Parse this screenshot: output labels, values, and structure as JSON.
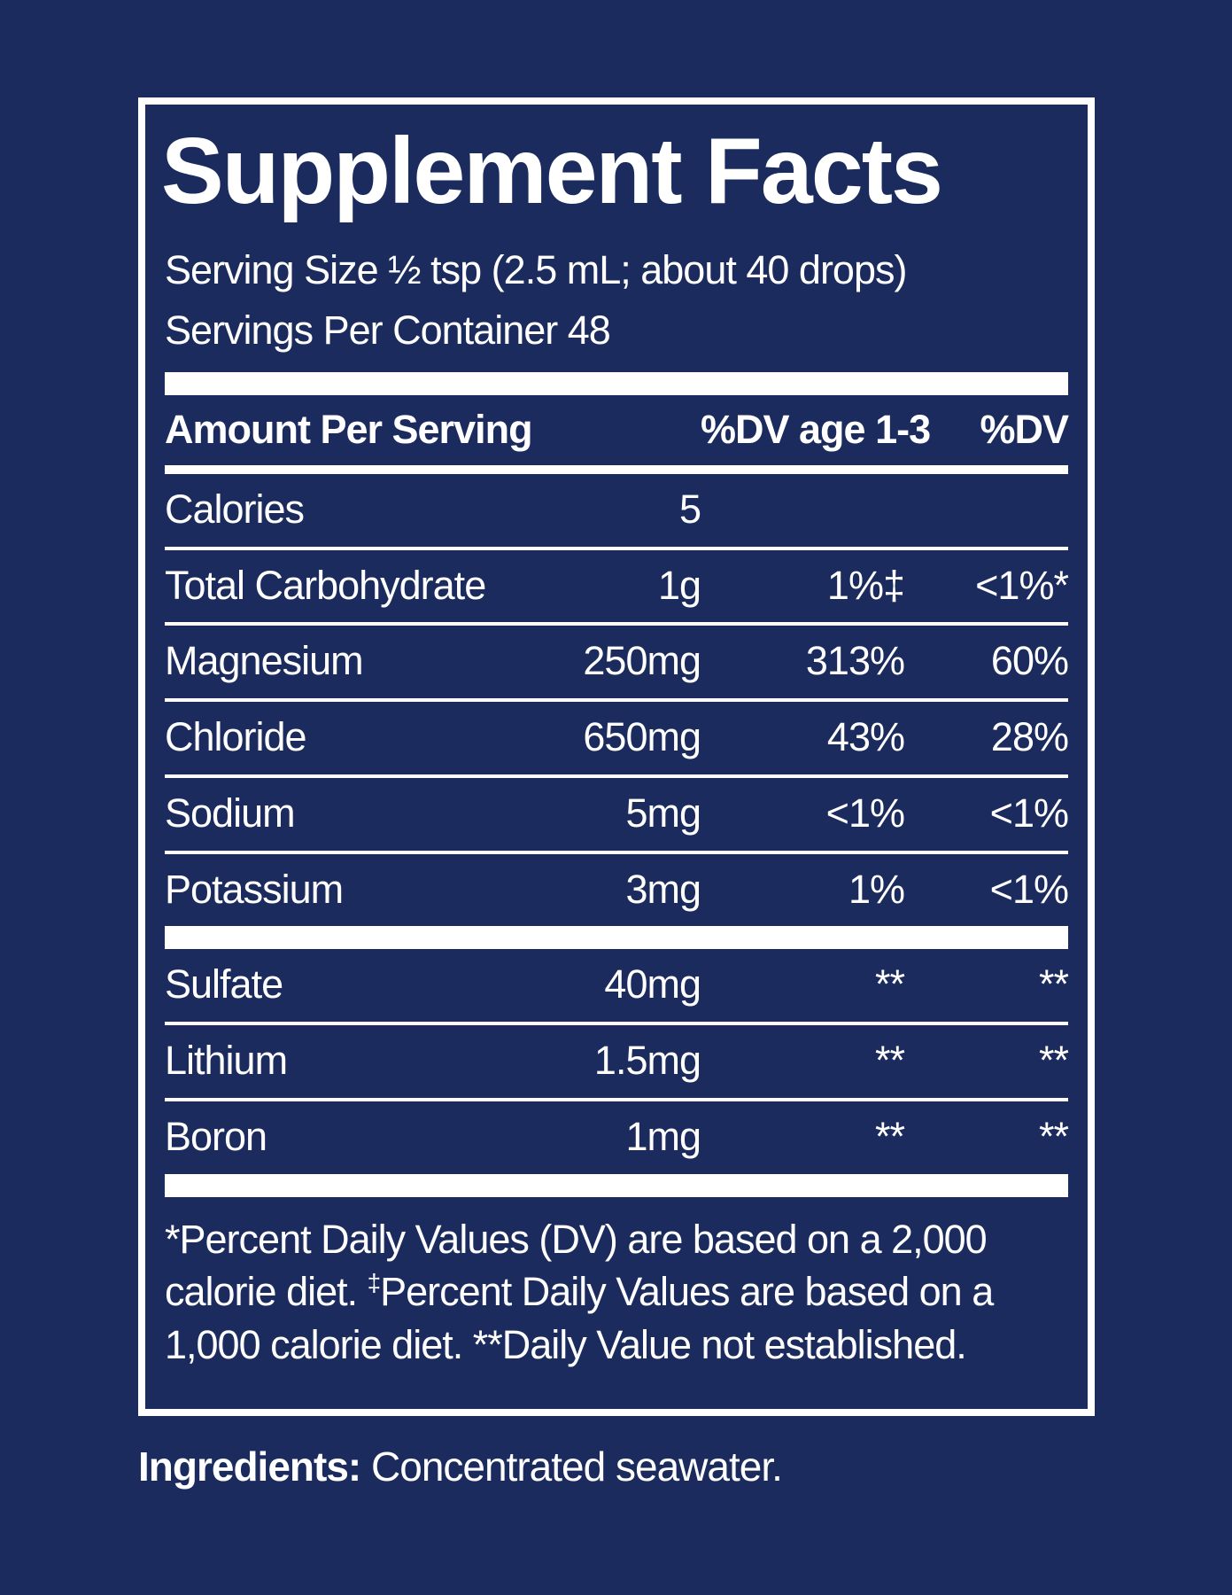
{
  "colors": {
    "background": "#1b2b5e",
    "foreground": "#ffffff"
  },
  "panel": {
    "title": "Supplement Facts",
    "serving_size": "Serving Size ½ tsp (2.5 mL; about 40 drops)",
    "servings_per_container": "Servings Per Container 48",
    "table": {
      "header": {
        "amount_per_serving": "Amount Per Serving",
        "dv_age_1_3": "%DV age 1-3",
        "dv": "%DV"
      },
      "rows": [
        {
          "name": "Calories",
          "amount": "5",
          "dv_age_1_3": "",
          "dv": ""
        },
        {
          "name": "Total Carbohydrate",
          "amount": "1g",
          "dv_age_1_3": "1%‡",
          "dv": "<1%*"
        },
        {
          "name": "Magnesium",
          "amount": "250mg",
          "dv_age_1_3": "313%",
          "dv": "60%"
        },
        {
          "name": "Chloride",
          "amount": "650mg",
          "dv_age_1_3": "43%",
          "dv": "28%"
        },
        {
          "name": "Sodium",
          "amount": "5mg",
          "dv_age_1_3": "<1%",
          "dv": "<1%"
        },
        {
          "name": "Potassium",
          "amount": "3mg",
          "dv_age_1_3": "1%",
          "dv": "<1%"
        }
      ],
      "trace_rows": [
        {
          "name": "Sulfate",
          "amount": "40mg",
          "dv_age_1_3": "**",
          "dv": "**"
        },
        {
          "name": "Lithium",
          "amount": "1.5mg",
          "dv_age_1_3": "**",
          "dv": "**"
        },
        {
          "name": "Boron",
          "amount": "1mg",
          "dv_age_1_3": "**",
          "dv": "**"
        }
      ]
    },
    "footnote": {
      "part1": "*Percent Daily Values (DV) are based on a 2,000 calorie diet. ",
      "dagger": "‡",
      "part2": "Percent Daily Values are based on a 1,000 calorie diet. **Daily Value not established."
    }
  },
  "ingredients": {
    "label": "Ingredients:",
    "text": "Concentrated seawater."
  }
}
